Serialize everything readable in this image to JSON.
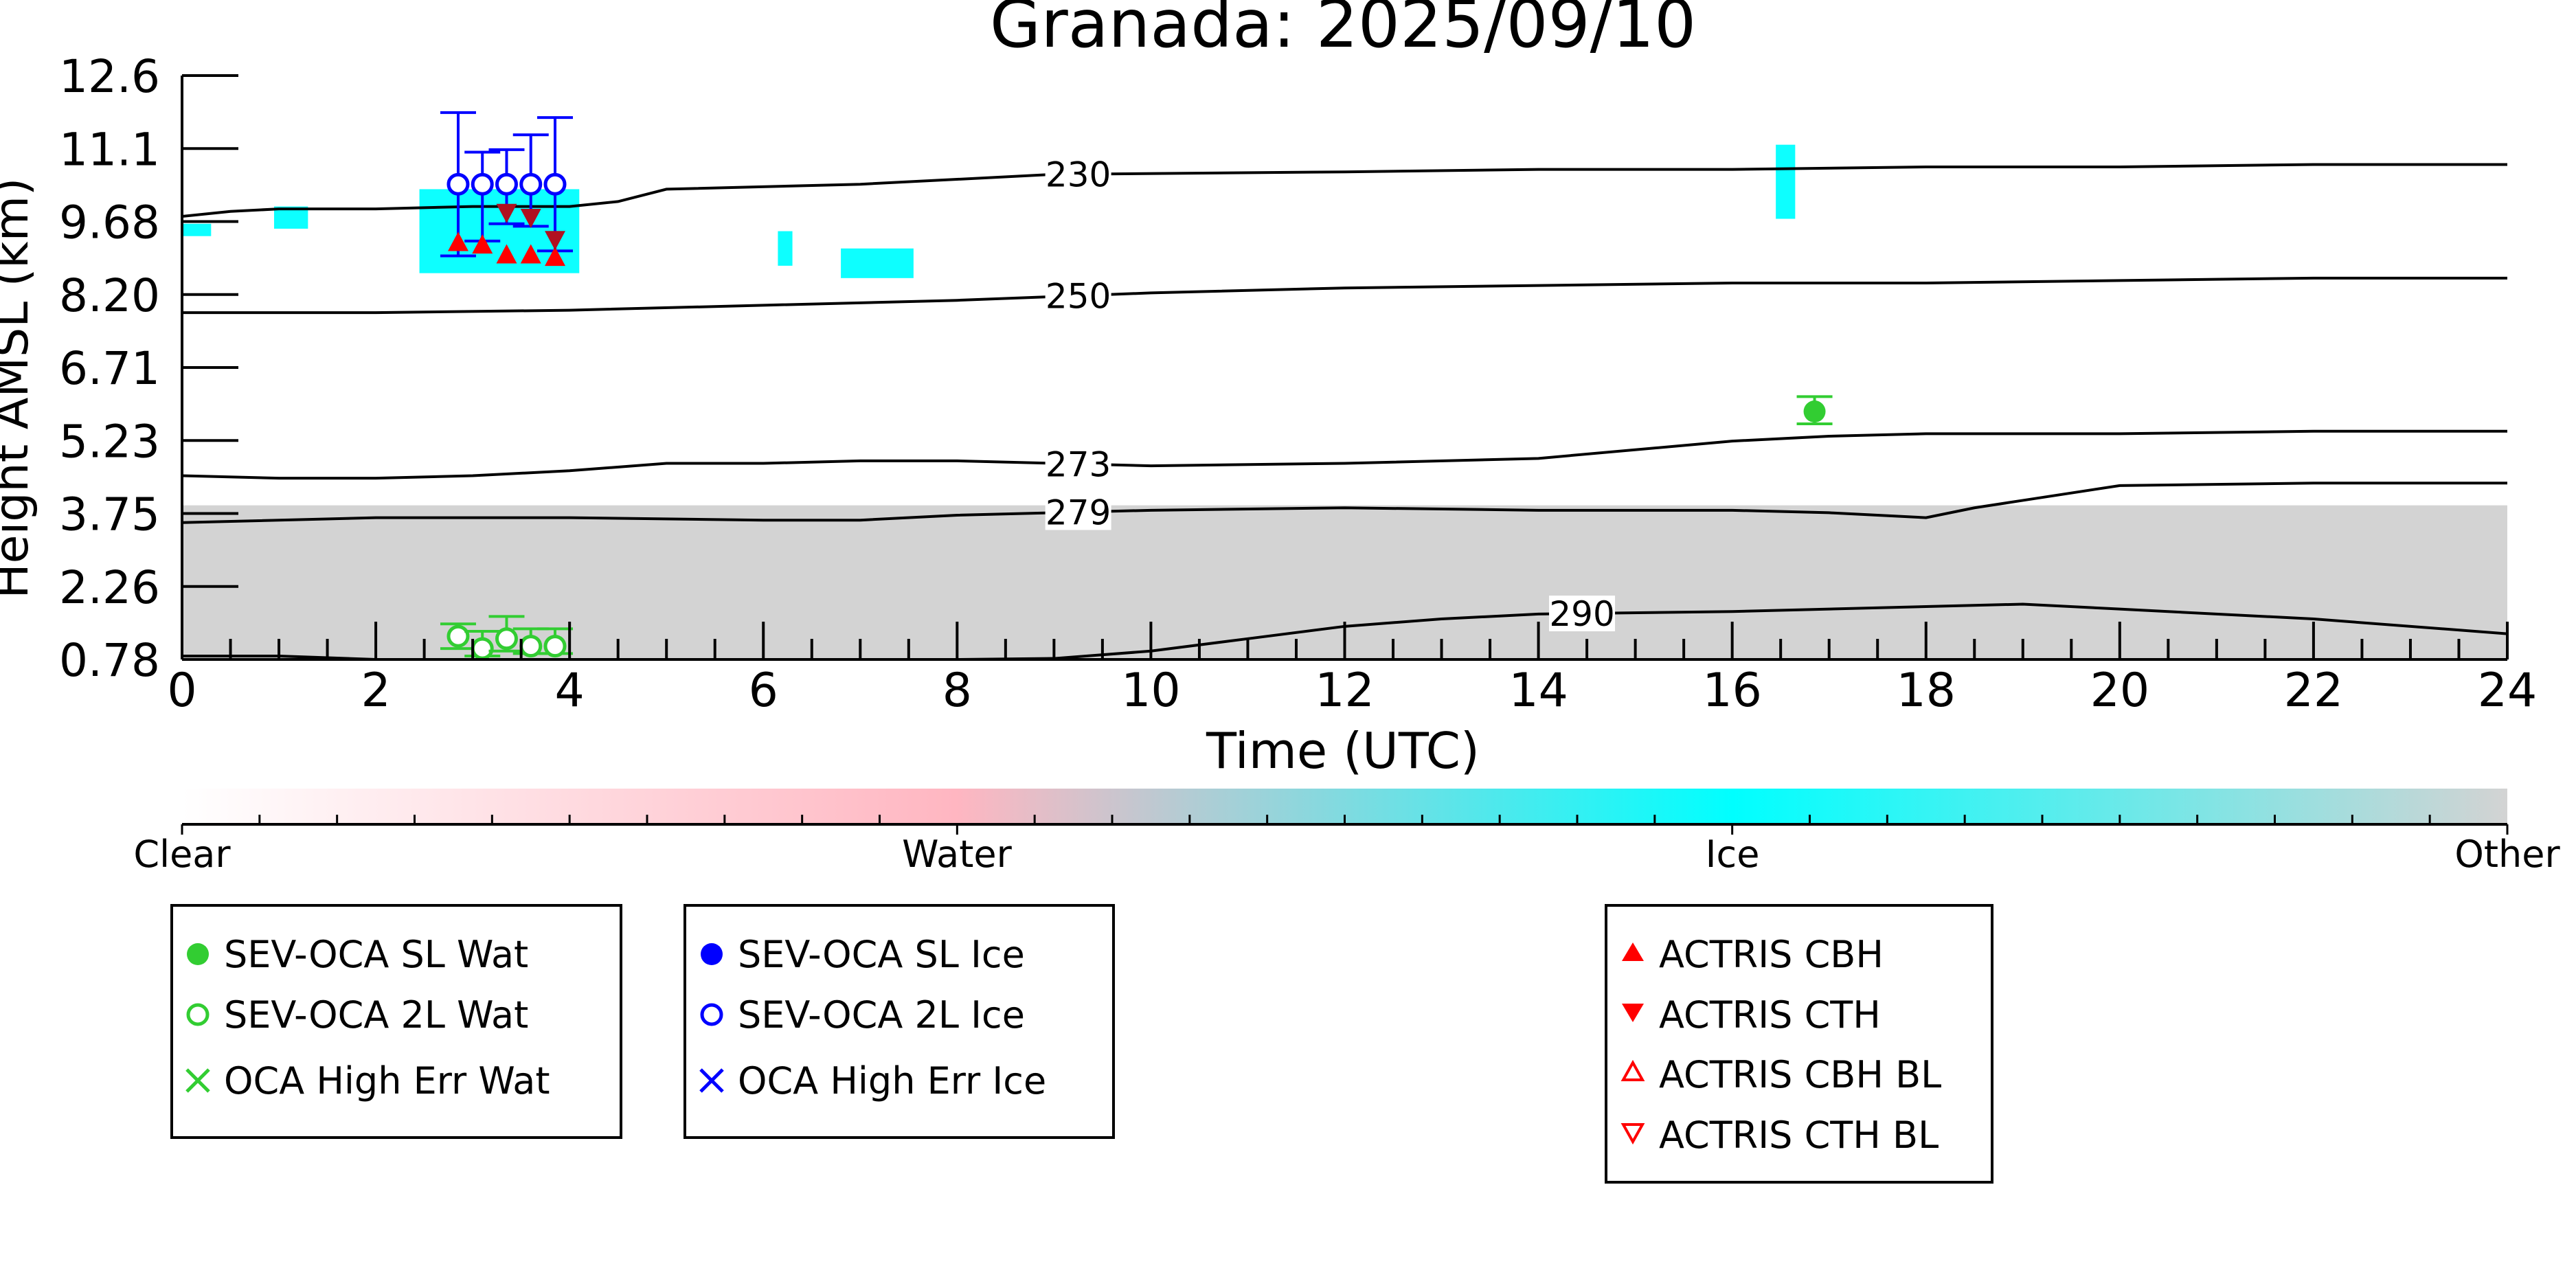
{
  "colors": {
    "axis": "#000000",
    "background_cloud": "#d3d3d3",
    "ice": "#00ffff",
    "water": "#ffb6c1",
    "other": "#d3d3d3",
    "sev_wat": "#32cd32",
    "sev_ice": "#0000ff",
    "actris": "#ff0000",
    "actris_dark": "#b01020",
    "isotherm": "#000000"
  },
  "chart_data": {
    "type": "scatter",
    "title": "Granada: 2025/09/10",
    "xlabel": "Time (UTC)",
    "ylabel": "Height AMSL (km)",
    "xlim": [
      0,
      24
    ],
    "ylim": [
      0.78,
      12.6
    ],
    "x_ticks": [
      0,
      2,
      4,
      6,
      8,
      10,
      12,
      14,
      16,
      18,
      20,
      22,
      24
    ],
    "y_ticks": [
      "0.78",
      "2.26",
      "3.75",
      "5.23",
      "6.71",
      "8.20",
      "9.68",
      "11.1",
      "12.6"
    ],
    "grid": false,
    "classification_colorbar": {
      "labels": [
        "Clear",
        "Water",
        "Ice",
        "Other"
      ]
    },
    "isotherms": [
      {
        "label": "230",
        "x": [
          0,
          0.5,
          1,
          2,
          3,
          4,
          4.5,
          5,
          7,
          9,
          12,
          14,
          16,
          18,
          20,
          22,
          24
        ],
        "y": [
          9.75,
          9.85,
          9.9,
          9.9,
          9.95,
          9.95,
          10.05,
          10.3,
          10.4,
          10.6,
          10.65,
          10.7,
          10.7,
          10.75,
          10.75,
          10.8,
          10.8
        ]
      },
      {
        "label": "250",
        "x": [
          0,
          2,
          4,
          6,
          8,
          10,
          12,
          14,
          16,
          18,
          20,
          22,
          24
        ],
        "y": [
          7.8,
          7.8,
          7.85,
          7.95,
          8.05,
          8.2,
          8.3,
          8.35,
          8.4,
          8.4,
          8.45,
          8.5,
          8.5
        ]
      },
      {
        "label": "273",
        "x": [
          0,
          1,
          2,
          3,
          4,
          5,
          6,
          7,
          8,
          9,
          10,
          12,
          14,
          16,
          17,
          18,
          20,
          22,
          24
        ],
        "y": [
          4.5,
          4.45,
          4.45,
          4.5,
          4.6,
          4.75,
          4.75,
          4.8,
          4.8,
          4.75,
          4.7,
          4.75,
          4.85,
          5.2,
          5.3,
          5.35,
          5.35,
          5.4,
          5.4
        ]
      },
      {
        "label": "279",
        "x": [
          0,
          2,
          4,
          6,
          7,
          8,
          10,
          12,
          14,
          16,
          17,
          18,
          18.5,
          19,
          20,
          22,
          24
        ],
        "y": [
          3.55,
          3.65,
          3.65,
          3.6,
          3.6,
          3.7,
          3.8,
          3.85,
          3.8,
          3.8,
          3.75,
          3.65,
          3.85,
          4.0,
          4.3,
          4.35,
          4.35
        ]
      },
      {
        "label": "290",
        "x": [
          0,
          1,
          2,
          8,
          9,
          10,
          11,
          12,
          13,
          14,
          16,
          18,
          19,
          20,
          22,
          24
        ],
        "y": [
          0.85,
          0.85,
          0.78,
          0.78,
          0.8,
          0.95,
          1.2,
          1.45,
          1.6,
          1.7,
          1.75,
          1.85,
          1.9,
          1.8,
          1.6,
          1.3
        ]
      }
    ],
    "series": [
      {
        "name": "SEV-OCA SL Wat",
        "marker": "filled-circle",
        "color": "#32cd32",
        "points": [
          {
            "x": 16.85,
            "y": 5.8,
            "err_low": 5.55,
            "err_high": 6.1
          }
        ]
      },
      {
        "name": "SEV-OCA 2L Wat",
        "marker": "open-circle",
        "color": "#32cd32",
        "points": [
          {
            "x": 2.85,
            "y": 1.25,
            "err_low": 1.0,
            "err_high": 1.5
          },
          {
            "x": 3.1,
            "y": 1.0,
            "err_low": 0.85,
            "err_high": 1.35
          },
          {
            "x": 3.35,
            "y": 1.2,
            "err_low": 0.95,
            "err_high": 1.65
          },
          {
            "x": 3.6,
            "y": 1.05,
            "err_low": 0.9,
            "err_high": 1.4
          },
          {
            "x": 3.85,
            "y": 1.05,
            "err_low": 0.9,
            "err_high": 1.4
          }
        ]
      },
      {
        "name": "OCA High Err Wat",
        "marker": "x",
        "color": "#32cd32",
        "points": []
      },
      {
        "name": "SEV-OCA SL Ice",
        "marker": "filled-circle",
        "color": "#0000ff",
        "points": []
      },
      {
        "name": "SEV-OCA 2L Ice",
        "marker": "open-circle",
        "color": "#0000ff",
        "points": [
          {
            "x": 2.85,
            "y": 10.4,
            "err_low": 8.95,
            "err_high": 11.85
          },
          {
            "x": 3.1,
            "y": 10.4,
            "err_low": 9.25,
            "err_high": 11.05
          },
          {
            "x": 3.35,
            "y": 10.4,
            "err_low": 9.6,
            "err_high": 11.1
          },
          {
            "x": 3.6,
            "y": 10.4,
            "err_low": 9.55,
            "err_high": 11.4
          },
          {
            "x": 3.85,
            "y": 10.4,
            "err_low": 9.05,
            "err_high": 11.75
          }
        ]
      },
      {
        "name": "OCA High Err Ice",
        "marker": "x",
        "color": "#0000ff",
        "points": []
      },
      {
        "name": "ACTRIS CBH",
        "marker": "triangle-up-filled",
        "color": "#ff0000",
        "points": [
          {
            "x": 2.85,
            "y": 9.2
          },
          {
            "x": 3.1,
            "y": 9.15
          },
          {
            "x": 3.35,
            "y": 8.95
          },
          {
            "x": 3.6,
            "y": 8.95
          },
          {
            "x": 3.85,
            "y": 8.9
          }
        ]
      },
      {
        "name": "ACTRIS CTH",
        "marker": "triangle-down-filled",
        "color": "#ff0000",
        "points": [
          {
            "x": 3.35,
            "y": 9.85
          },
          {
            "x": 3.6,
            "y": 9.75
          },
          {
            "x": 3.85,
            "y": 9.3
          }
        ]
      },
      {
        "name": "ACTRIS CBH BL",
        "marker": "triangle-up-open",
        "color": "#ff0000",
        "points": []
      },
      {
        "name": "ACTRIS CTH BL",
        "marker": "triangle-down-open",
        "color": "#ff0000",
        "points": []
      }
    ],
    "cloud_patches": [
      {
        "class": "Other",
        "x0": 0.0,
        "x1": 24.0,
        "y0": 0.78,
        "y1": 3.9
      },
      {
        "class": "Ice",
        "x0": 2.45,
        "x1": 4.1,
        "y0": 8.6,
        "y1": 10.3
      },
      {
        "class": "Ice",
        "x0": 0.0,
        "x1": 0.3,
        "y0": 9.35,
        "y1": 9.6
      },
      {
        "class": "Ice",
        "x0": 0.95,
        "x1": 1.3,
        "y0": 9.5,
        "y1": 9.95
      },
      {
        "class": "Ice",
        "x0": 6.15,
        "x1": 6.3,
        "y0": 8.75,
        "y1": 9.45
      },
      {
        "class": "Ice",
        "x0": 6.8,
        "x1": 7.55,
        "y0": 8.5,
        "y1": 9.1
      },
      {
        "class": "Ice",
        "x0": 16.45,
        "x1": 16.65,
        "y0": 9.7,
        "y1": 11.2
      }
    ],
    "legend_groups": [
      [
        "SEV-OCA SL Wat",
        "SEV-OCA 2L Wat",
        "OCA High Err Wat"
      ],
      [
        "SEV-OCA SL Ice",
        "SEV-OCA 2L Ice",
        "OCA High Err Ice"
      ],
      [
        "ACTRIS CBH",
        "ACTRIS CTH",
        "ACTRIS CBH BL",
        "ACTRIS CTH BL"
      ]
    ],
    "legend_placement": "bottom"
  }
}
